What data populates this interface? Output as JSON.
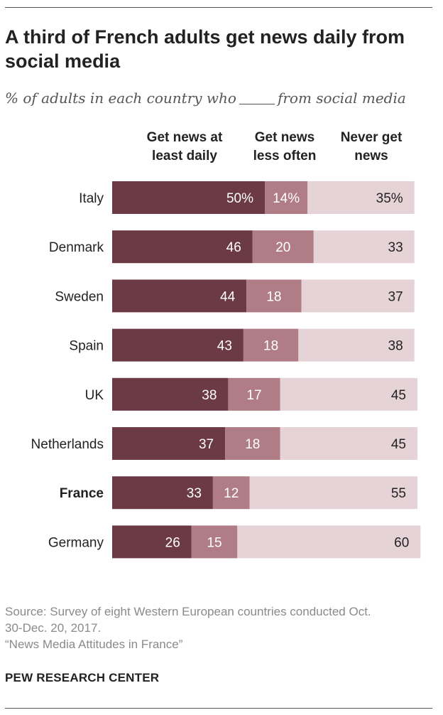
{
  "title": "A third of French adults get news daily from social media",
  "subtitle_before": "% of adults in each country who",
  "subtitle_after": "from social media",
  "colors": {
    "daily": "#6b3a45",
    "less": "#b07d87",
    "never": "#e5d3d7",
    "text_dark_bg": "#ffffff",
    "text_light_bg": "#222222"
  },
  "chart_data": {
    "type": "bar",
    "orientation": "horizontal",
    "stacked": true,
    "title": "A third of French adults get news daily from social media",
    "categories": [
      "Italy",
      "Denmark",
      "Sweden",
      "Spain",
      "UK",
      "Netherlands",
      "France",
      "Germany"
    ],
    "highlighted_category": "France",
    "series": [
      {
        "name": "Get news at least daily",
        "name_lines": [
          "Get news at",
          "least daily"
        ],
        "values": [
          50,
          46,
          44,
          43,
          38,
          37,
          33,
          26
        ],
        "labels": [
          "50%",
          "46",
          "44",
          "43",
          "38",
          "37",
          "33",
          "26"
        ]
      },
      {
        "name": "Get news less often",
        "name_lines": [
          "Get news",
          "less often"
        ],
        "values": [
          14,
          20,
          18,
          18,
          17,
          18,
          12,
          15
        ],
        "labels": [
          "14%",
          "20",
          "18",
          "18",
          "17",
          "18",
          "12",
          "15"
        ]
      },
      {
        "name": "Never get news",
        "name_lines": [
          "Never get",
          "news"
        ],
        "values": [
          35,
          33,
          37,
          38,
          45,
          45,
          55,
          60
        ],
        "labels": [
          "35%",
          "33",
          "37",
          "38",
          "45",
          "45",
          "55",
          "60"
        ]
      }
    ],
    "xlim": [
      0,
      100
    ],
    "grid": false,
    "legend": "column headers above bars",
    "unit": "%"
  },
  "footer": {
    "source_line1": "Source: Survey of eight Western European countries conducted Oct.",
    "source_line2": "30-Dec. 20, 2017.",
    "report": "“News Media Attitudes in France”"
  },
  "brand": "PEW RESEARCH CENTER"
}
